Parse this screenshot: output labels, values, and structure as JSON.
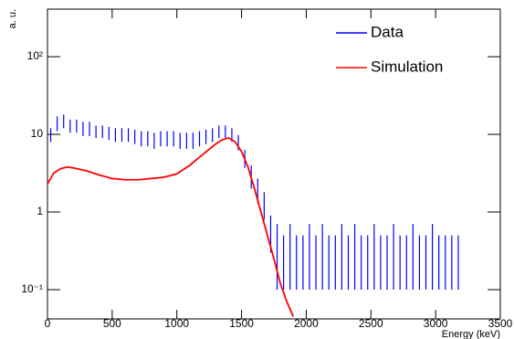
{
  "chart_data": {
    "type": "errorbar",
    "x_label": "Energy (keV)",
    "y_label": "a. u.",
    "xlim": [
      0,
      3500
    ],
    "xticks": [
      0,
      500,
      1000,
      1500,
      2000,
      2500,
      3000,
      3500
    ],
    "ylim": [
      0.042,
      410
    ],
    "log_y": true,
    "yticks": [
      {
        "value": 0.1,
        "label": "10⁻¹"
      },
      1,
      10,
      {
        "value": 100,
        "label": "10²"
      }
    ],
    "legend": "top-right",
    "series": [
      {
        "name": "Data",
        "color": "#0000ff",
        "style": "errorbar",
        "x": [
          25,
          75,
          125,
          175,
          225,
          275,
          325,
          375,
          425,
          475,
          525,
          575,
          625,
          675,
          725,
          775,
          825,
          875,
          925,
          975,
          1025,
          1075,
          1125,
          1175,
          1225,
          1275,
          1325,
          1375,
          1425,
          1475,
          1525,
          1575,
          1625,
          1675,
          1725,
          1775,
          1825,
          1875,
          1925,
          1975,
          2025,
          2075,
          2125,
          2175,
          2225,
          2275,
          2325,
          2375,
          2425,
          2475,
          2525,
          2575,
          2625,
          2675,
          2725,
          2775,
          2825,
          2875,
          2925,
          2975,
          3025,
          3075,
          3125,
          3175
        ],
        "values": [
          10,
          14,
          15,
          13,
          13,
          12,
          12,
          11,
          11,
          10.5,
          10,
          10,
          10,
          9.5,
          9,
          9,
          8.5,
          9,
          9,
          9,
          8.5,
          8.5,
          8.5,
          9,
          9.5,
          10,
          11,
          11,
          10,
          8,
          5,
          3,
          2,
          1.3,
          0.6,
          0.4,
          0.3,
          0.4,
          0.3,
          0.3,
          0.4,
          0.3,
          0.4,
          0.3,
          0.3,
          0.4,
          0.3,
          0.4,
          0.3,
          0.3,
          0.4,
          0.3,
          0.3,
          0.4,
          0.3,
          0.3,
          0.4,
          0.3,
          0.3,
          0.4,
          0.3,
          0.3,
          0.3,
          0.3
        ],
        "errors": [
          2,
          3,
          3,
          2.5,
          2.5,
          2.5,
          2.5,
          2,
          2,
          2,
          2,
          2,
          2,
          2,
          2,
          2,
          2,
          2,
          2,
          2,
          2,
          2,
          2,
          2,
          2,
          2,
          2,
          2,
          2,
          1.8,
          1.3,
          1,
          0.7,
          0.5,
          0.3,
          0.3,
          0.2,
          0.3,
          0.2,
          0.2,
          0.3,
          0.2,
          0.3,
          0.2,
          0.2,
          0.3,
          0.2,
          0.3,
          0.2,
          0.2,
          0.3,
          0.2,
          0.2,
          0.3,
          0.2,
          0.2,
          0.3,
          0.2,
          0.2,
          0.3,
          0.2,
          0.2,
          0.2,
          0.2
        ]
      },
      {
        "name": "Simulation",
        "color": "#ff0000",
        "style": "line",
        "x": [
          0,
          50,
          100,
          150,
          200,
          300,
          400,
          500,
          600,
          700,
          800,
          900,
          1000,
          1100,
          1200,
          1300,
          1350,
          1400,
          1450,
          1500,
          1550,
          1600,
          1650,
          1700,
          1750,
          1800,
          1850,
          1900
        ],
        "values": [
          2.3,
          3.2,
          3.6,
          3.8,
          3.7,
          3.4,
          3.0,
          2.7,
          2.6,
          2.6,
          2.7,
          2.8,
          3.1,
          4,
          5.5,
          7.5,
          8.5,
          9,
          8,
          6,
          3.8,
          2,
          1,
          0.5,
          0.25,
          0.12,
          0.07,
          0.045
        ]
      }
    ]
  }
}
